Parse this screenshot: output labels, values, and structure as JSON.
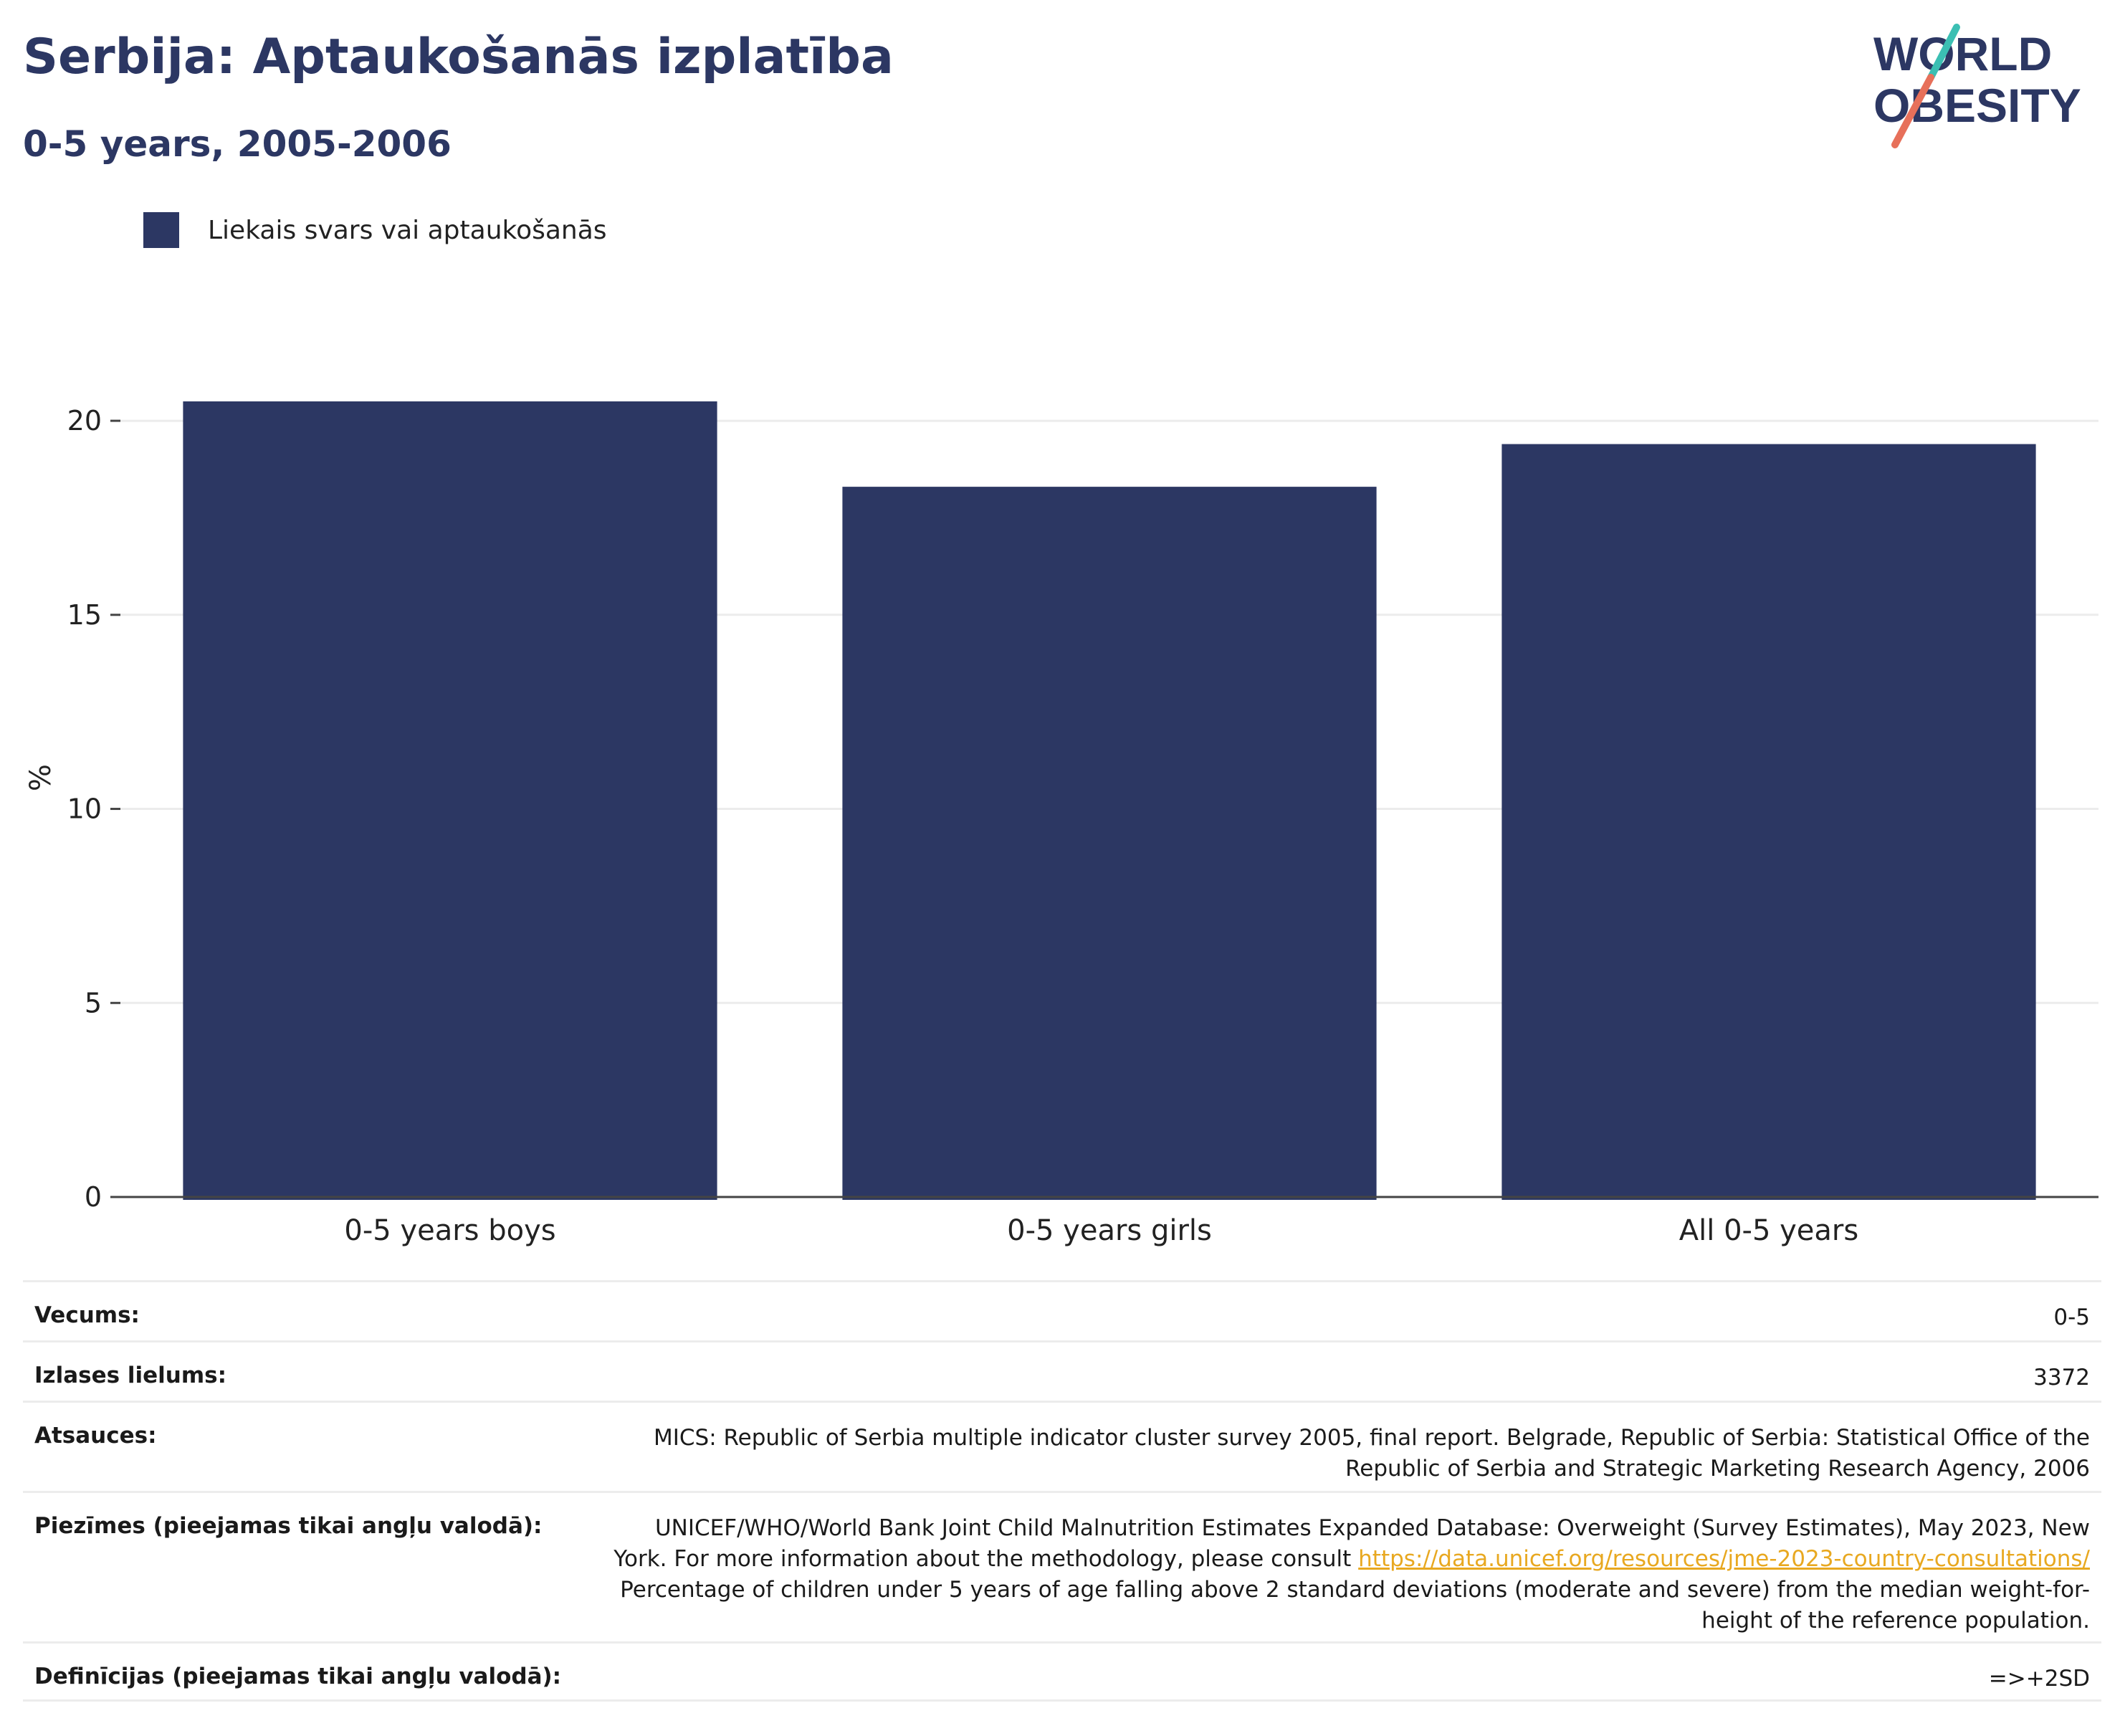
{
  "header": {
    "title": "Serbija: Aptaukošanās izplatība",
    "subtitle": "0-5 years, 2005-2006"
  },
  "logo": {
    "line1": "WORLD",
    "line2": "OBESITY"
  },
  "colors": {
    "bar": "#2c3763",
    "title": "#2c3763",
    "link": "#e8a820",
    "grid": "#ececec"
  },
  "chart_data": {
    "type": "bar",
    "categories": [
      "0-5 years boys",
      "0-5 years girls",
      "All 0-5 years"
    ],
    "series": [
      {
        "name": "Liekais svars vai aptaukošanās",
        "values": [
          20.5,
          18.3,
          19.4
        ]
      }
    ],
    "ylabel": "%",
    "ylim": [
      0,
      20.5
    ],
    "yticks": [
      0,
      5,
      10,
      15,
      20
    ],
    "grid": true,
    "legend": "top-left"
  },
  "info": {
    "rows": [
      {
        "label": "Vecums:",
        "value": "0-5"
      },
      {
        "label": "Izlases lielums:",
        "value": "3372"
      },
      {
        "label": "Atsauces:",
        "value": "MICS: Republic of Serbia multiple indicator cluster survey 2005, final report. Belgrade, Republic of Serbia: Statistical Office of the Republic of Serbia and Strategic Marketing Research Agency, 2006"
      },
      {
        "label": "Piezīmes (pieejamas tikai angļu valodā):",
        "value_before": "UNICEF/WHO/World Bank Joint Child Malnutrition Estimates Expanded Database: Overweight (Survey Estimates), May 2023, New York. For more information about the methodology, please consult ",
        "link": "https://data.unicef.org/resources/jme-2023-country-consultations/",
        "value_after": " Percentage of children under 5 years of age falling above 2 standard deviations (moderate and severe) from the median weight-for-height of the reference population."
      },
      {
        "label": "Definīcijas (pieejamas tikai angļu valodā):",
        "value": "=>+2SD"
      }
    ]
  }
}
